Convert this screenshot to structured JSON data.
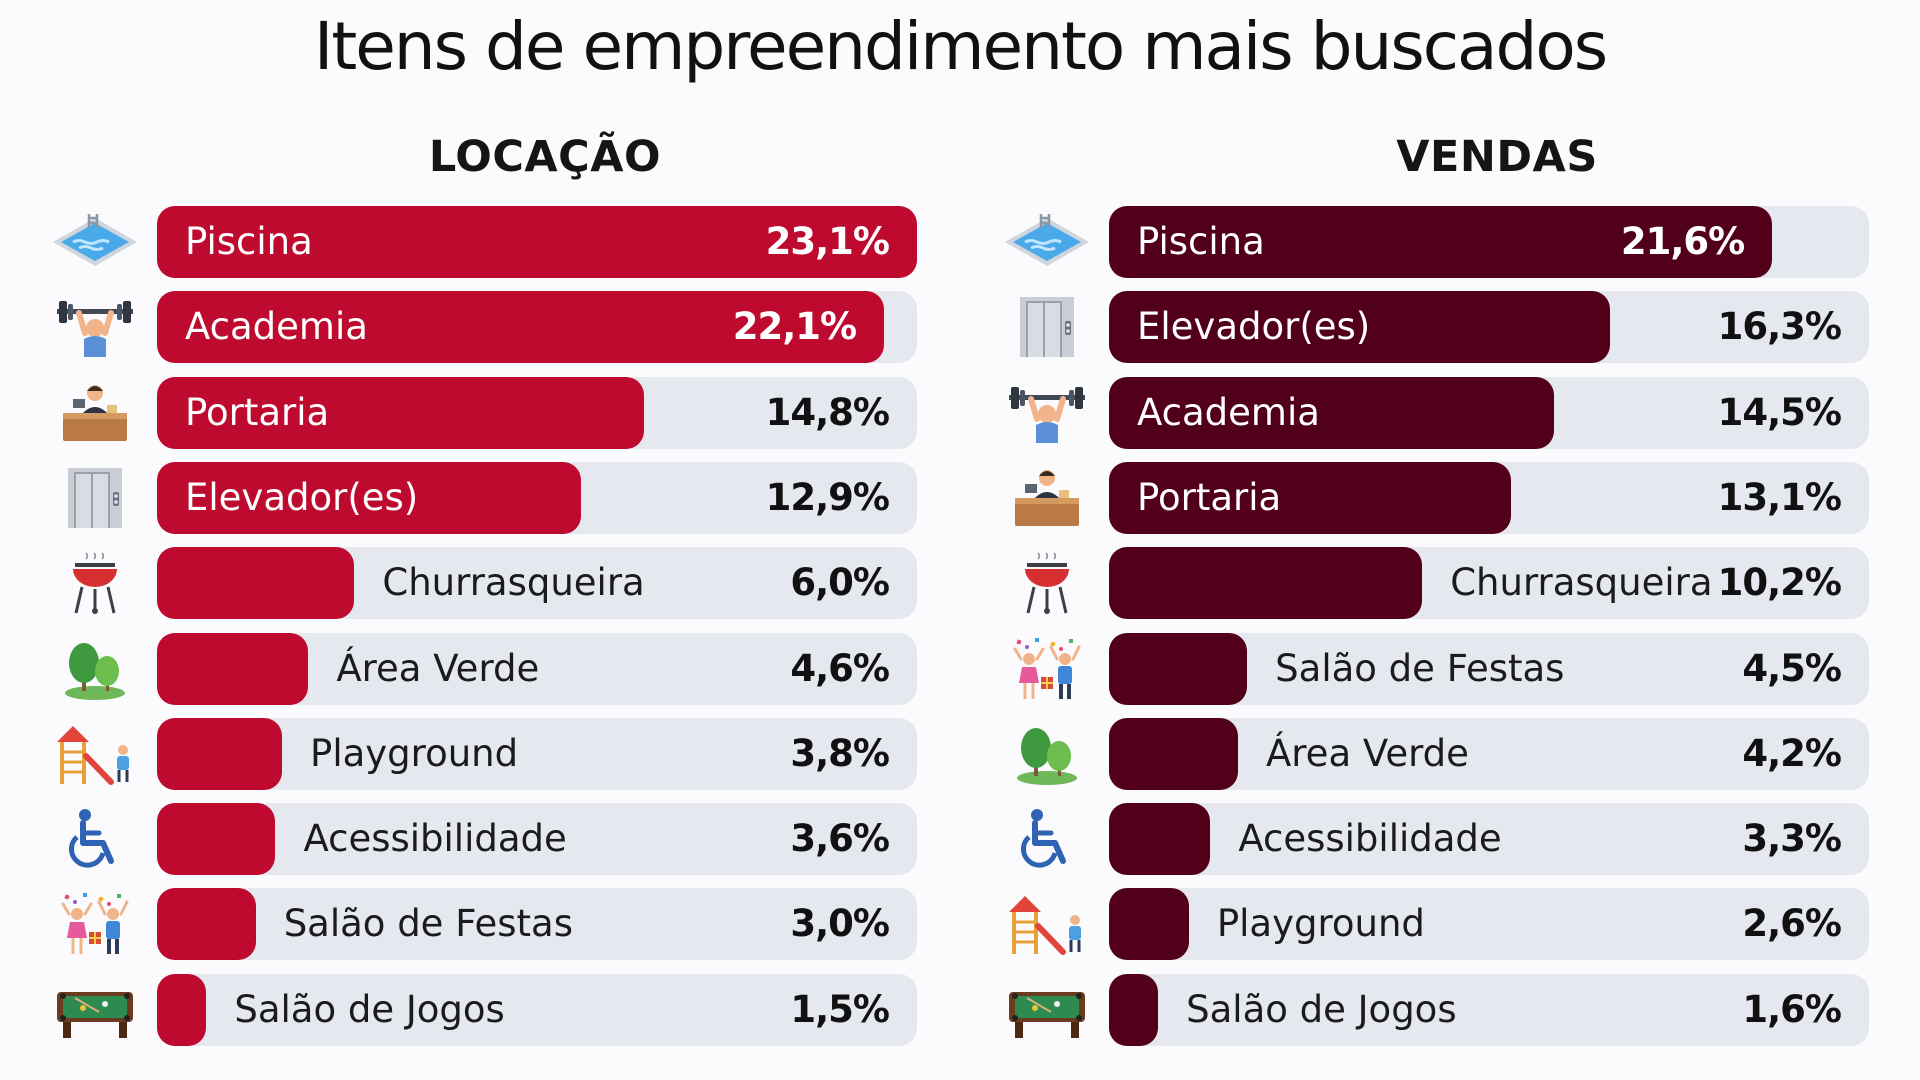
{
  "title": "Itens de empreendimento mais buscados",
  "colors": {
    "locacao": "#be0a2e",
    "vendas": "#520019",
    "track": "#e6e8f0"
  },
  "chart_data": [
    {
      "type": "bar",
      "orientation": "horizontal",
      "title": "LOCAÇÃO",
      "unit": "%",
      "xlim": [
        0,
        23.1
      ],
      "categories": [
        "Piscina",
        "Academia",
        "Portaria",
        "Elevador(es)",
        "Churrasqueira",
        "Área Verde",
        "Playground",
        "Acessibilidade",
        "Salão de Festas",
        "Salão de Jogos"
      ],
      "values": [
        23.1,
        22.1,
        14.8,
        12.9,
        6.0,
        4.6,
        3.8,
        3.6,
        3.0,
        1.5
      ],
      "value_labels": [
        "23,1%",
        "22,1%",
        "14,8%",
        "12,9%",
        "6,0%",
        "4,6%",
        "3,8%",
        "3,6%",
        "3,0%",
        "1,5%"
      ],
      "icons": [
        "pool-icon",
        "weightlifting-icon",
        "reception-icon",
        "elevator-icon",
        "grill-icon",
        "tree-icon",
        "playground-icon",
        "wheelchair-icon",
        "party-icon",
        "pool-table-icon"
      ]
    },
    {
      "type": "bar",
      "orientation": "horizontal",
      "title": "VENDAS",
      "unit": "%",
      "xlim": [
        0,
        24.75
      ],
      "categories": [
        "Piscina",
        "Elevador(es)",
        "Academia",
        "Portaria",
        "Churrasqueira",
        "Salão de Festas",
        "Área Verde",
        "Acessibilidade",
        "Playground",
        "Salão de Jogos"
      ],
      "values": [
        21.6,
        16.3,
        14.5,
        13.1,
        10.2,
        4.5,
        4.2,
        3.3,
        2.6,
        1.6
      ],
      "value_labels": [
        "21,6%",
        "16,3%",
        "14,5%",
        "13,1%",
        "10,2%",
        "4,5%",
        "4,2%",
        "3,3%",
        "2,6%",
        "1,6%"
      ],
      "icons": [
        "pool-icon",
        "elevator-icon",
        "weightlifting-icon",
        "reception-icon",
        "grill-icon",
        "party-icon",
        "tree-icon",
        "wheelchair-icon",
        "playground-icon",
        "pool-table-icon"
      ]
    }
  ]
}
